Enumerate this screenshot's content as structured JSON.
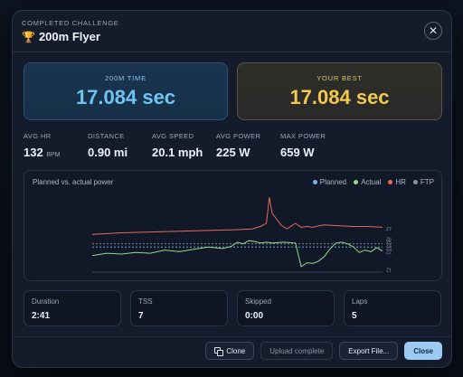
{
  "header": {
    "overline": "COMPLETED CHALLENGE",
    "trophy_icon": "🏆",
    "title": "200m Flyer",
    "close_symbol": "✕"
  },
  "cards": {
    "time_label": "200M TIME",
    "time_value": "17.084 sec",
    "best_label": "YOUR BEST",
    "best_value": "17.084 sec"
  },
  "metrics": [
    {
      "label": "AVG HR",
      "value": "132",
      "unit": "BPM"
    },
    {
      "label": "DISTANCE",
      "value": "0.90 mi",
      "unit": ""
    },
    {
      "label": "AVG SPEED",
      "value": "20.1 mph",
      "unit": ""
    },
    {
      "label": "AVG POWER",
      "value": "225 W",
      "unit": ""
    },
    {
      "label": "MAX POWER",
      "value": "659 W",
      "unit": ""
    }
  ],
  "chart": {
    "title": "Planned vs. actual power",
    "legend": [
      {
        "name": "Planned",
        "color": "#7fb2e0"
      },
      {
        "name": "Actual",
        "color": "#8fdc8a"
      },
      {
        "name": "HR",
        "color": "#e26a62"
      },
      {
        "name": "FTP",
        "color": "#8a93a6"
      }
    ]
  },
  "chart_data": {
    "type": "line",
    "title": "Planned vs. actual power",
    "legend_placement": "top-right",
    "right_axis_ticks": [
      "Z7",
      "Z6",
      "Z5",
      "Z4",
      "Z3",
      "Z2",
      "Z1"
    ],
    "ylim": [
      0,
      100
    ],
    "series": [
      {
        "name": "HR",
        "color": "#e26a62",
        "x": [
          0,
          5,
          10,
          20,
          30,
          40,
          50,
          55,
          58,
          60,
          61,
          62,
          65,
          67,
          70,
          72,
          74,
          76,
          78,
          80,
          85,
          90,
          95,
          100
        ],
        "values": [
          48,
          49,
          50,
          51,
          52,
          53,
          54,
          55,
          58,
          62,
          95,
          75,
          60,
          55,
          62,
          57,
          58,
          57,
          59,
          60,
          59,
          58,
          58,
          57
        ]
      },
      {
        "name": "Actual",
        "color": "#8fdc8a",
        "x": [
          0,
          5,
          10,
          15,
          20,
          25,
          30,
          35,
          40,
          45,
          48,
          50,
          52,
          54,
          56,
          58,
          60,
          62,
          66,
          70,
          72,
          74,
          76,
          78,
          80,
          82,
          84,
          86,
          88,
          90,
          92,
          94,
          96,
          98,
          100
        ],
        "values": [
          21,
          24,
          23,
          25,
          24,
          28,
          26,
          29,
          32,
          30,
          33,
          38,
          36,
          40,
          39,
          37,
          38,
          37,
          38,
          37,
          7,
          12,
          11,
          14,
          20,
          30,
          37,
          38,
          36,
          32,
          25,
          28,
          26,
          31,
          27
        ]
      },
      {
        "name": "Planned",
        "color": "#7fb2e0",
        "x": [
          0,
          100
        ],
        "values": [
          32,
          32
        ]
      },
      {
        "name": "FTP",
        "color": "#8a93a6",
        "x": [
          0,
          100
        ],
        "values": [
          36,
          36
        ]
      }
    ]
  },
  "tiles": [
    {
      "label": "Duration",
      "value": "2:41"
    },
    {
      "label": "TSS",
      "value": "7"
    },
    {
      "label": "Skipped",
      "value": "0:00"
    },
    {
      "label": "Laps",
      "value": "5"
    }
  ],
  "footer": {
    "clone_label": "Clone",
    "upload_label": "Upload complete",
    "export_label": "Export File...",
    "close_label": "Close"
  }
}
